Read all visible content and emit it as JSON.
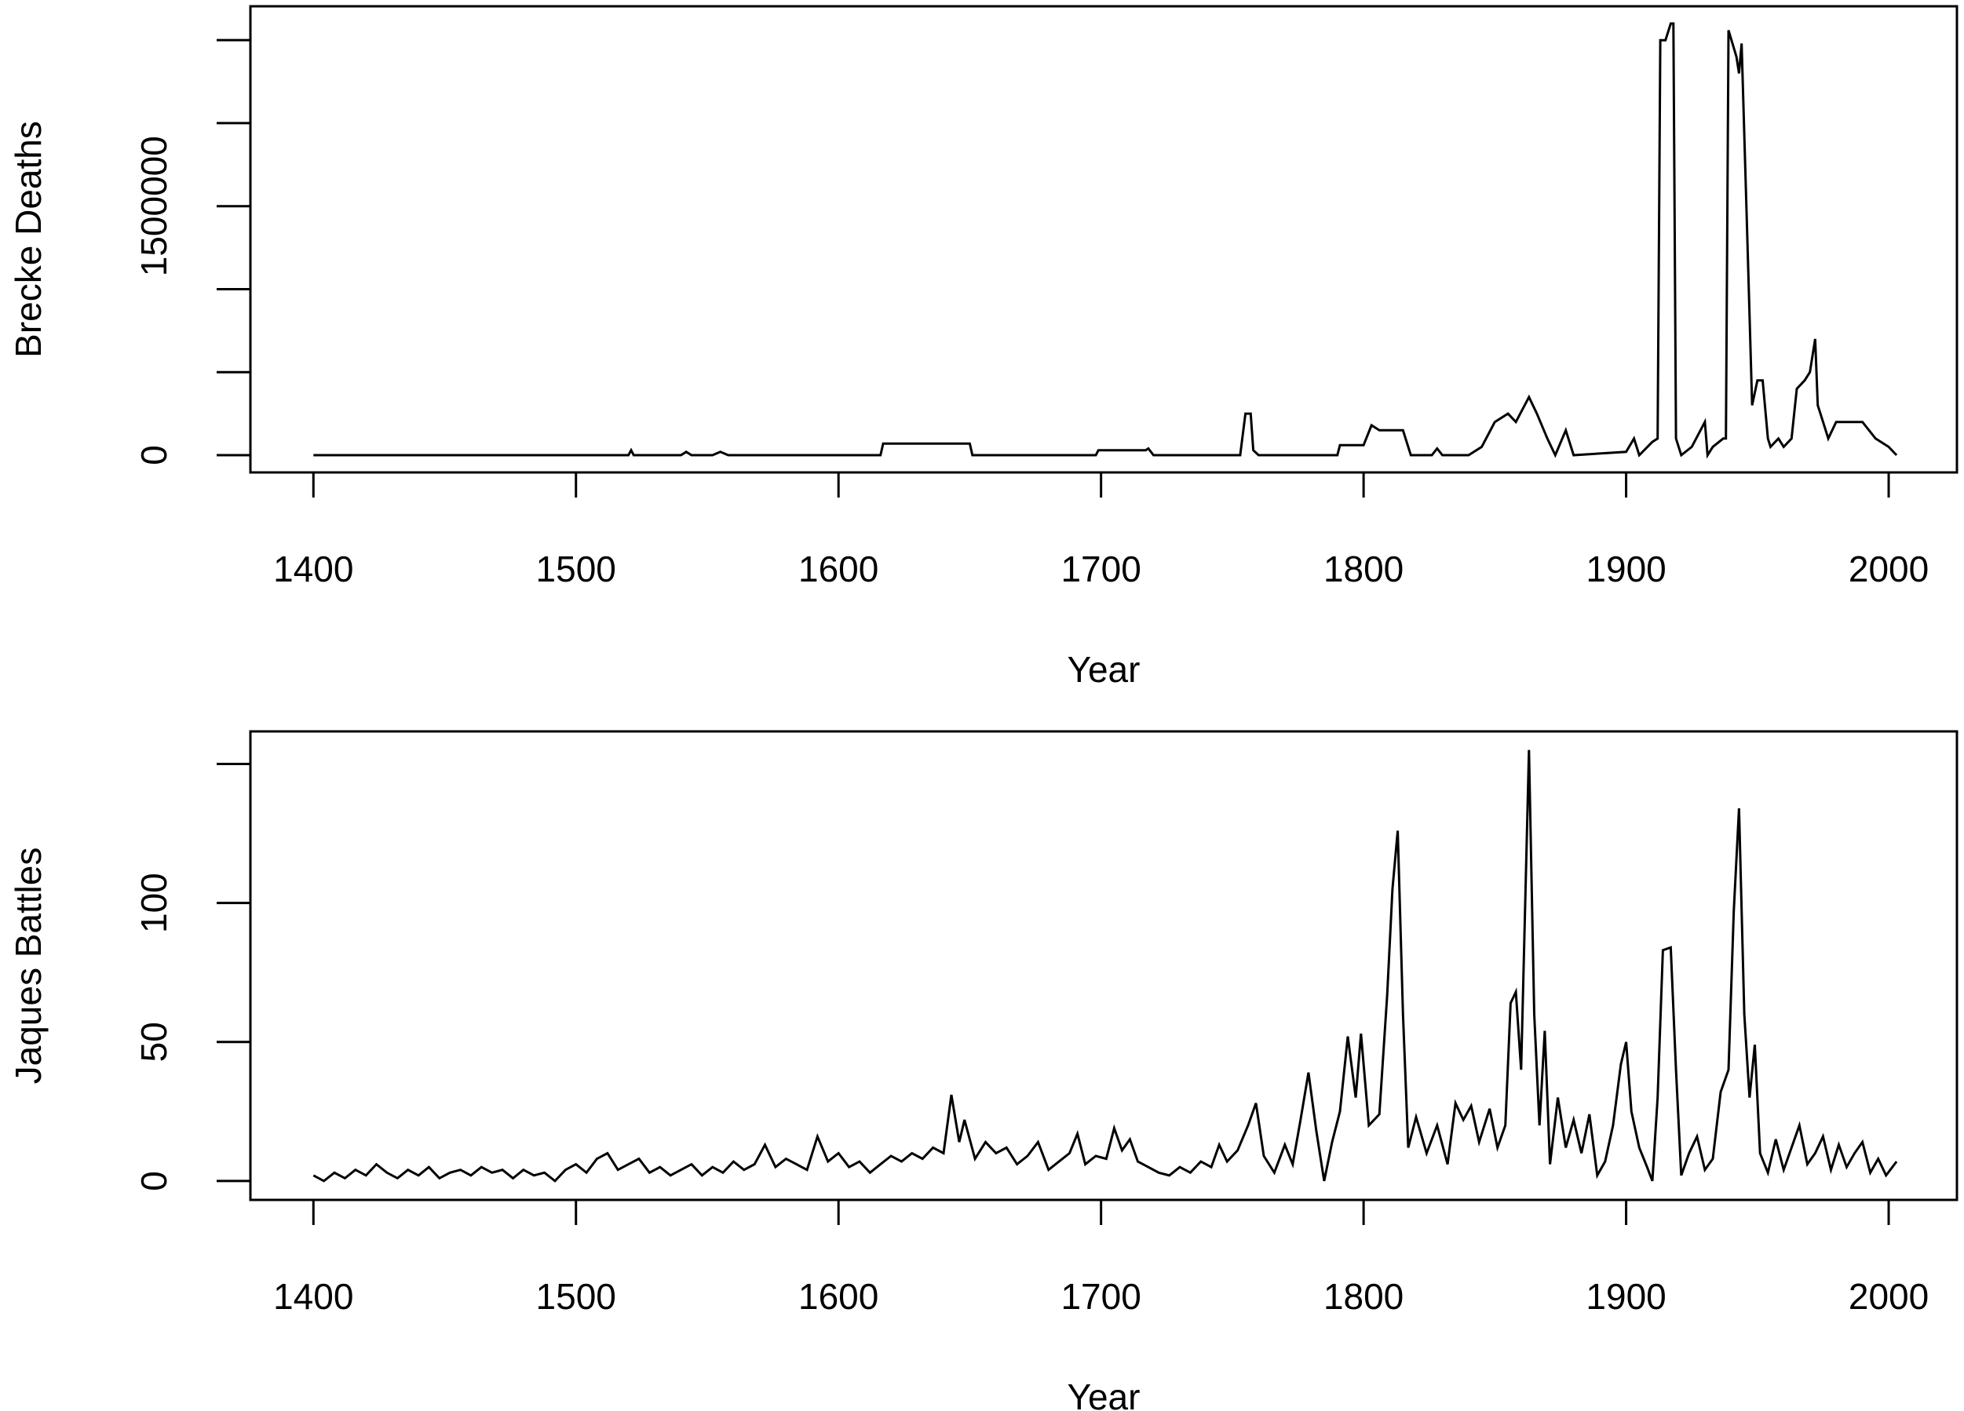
{
  "chart_data": [
    {
      "type": "line",
      "ylabel": "Brecke Deaths",
      "xlabel": "Year",
      "color": "#000000",
      "x": [
        1400,
        1520,
        1521,
        1522,
        1540,
        1542,
        1544,
        1552,
        1555,
        1558,
        1616,
        1617,
        1650,
        1651,
        1698,
        1699,
        1717,
        1718,
        1720,
        1721,
        1753,
        1755,
        1757,
        1758,
        1760,
        1790,
        1791,
        1800,
        1803,
        1806,
        1815,
        1818,
        1826,
        1828,
        1830,
        1840,
        1845,
        1850,
        1855,
        1858,
        1863,
        1866,
        1870,
        1873,
        1877,
        1880,
        1900,
        1903,
        1905,
        1910,
        1912,
        1913,
        1915,
        1917,
        1918,
        1919,
        1921,
        1925,
        1930,
        1931,
        1933,
        1937,
        1938,
        1939,
        1942,
        1943,
        1944,
        1946,
        1948,
        1950,
        1952,
        1954,
        1955,
        1958,
        1960,
        1963,
        1965,
        1968,
        1970,
        1972,
        1973,
        1974,
        1977,
        1980,
        1990,
        1995,
        2000,
        2003
      ],
      "values": [
        0,
        0,
        30000,
        0,
        0,
        20000,
        0,
        0,
        20000,
        0,
        0,
        70000,
        70000,
        0,
        0,
        30000,
        30000,
        40000,
        0,
        0,
        0,
        250000,
        250000,
        30000,
        0,
        0,
        60000,
        60000,
        180000,
        150000,
        150000,
        0,
        0,
        40000,
        0,
        0,
        50000,
        200000,
        250000,
        200000,
        350000,
        250000,
        100000,
        0,
        150000,
        0,
        20000,
        100000,
        0,
        80000,
        100000,
        2500000,
        2500000,
        2600000,
        2600000,
        100000,
        0,
        50000,
        200000,
        0,
        50000,
        100000,
        100000,
        2560000,
        2400000,
        2300000,
        2480000,
        1400000,
        300000,
        450000,
        450000,
        100000,
        50000,
        100000,
        50000,
        100000,
        400000,
        450000,
        500000,
        700000,
        300000,
        250000,
        100000,
        200000,
        200000,
        100000,
        50000,
        0
      ],
      "xlim": [
        1376,
        2026
      ],
      "xticks": [
        1400,
        1500,
        1600,
        1700,
        1800,
        1900,
        2000
      ],
      "ylim": [
        -104000,
        2704000
      ],
      "yticks": [
        0,
        1500000
      ],
      "ytick_marks": [
        0,
        500000,
        1000000,
        1500000,
        2000000,
        2500000
      ]
    },
    {
      "type": "line",
      "ylabel": "Jaques Battles",
      "xlabel": "Year",
      "color": "#000000",
      "x": [
        1400,
        1404,
        1408,
        1412,
        1416,
        1420,
        1424,
        1428,
        1432,
        1436,
        1440,
        1444,
        1448,
        1452,
        1456,
        1460,
        1464,
        1468,
        1472,
        1476,
        1480,
        1484,
        1488,
        1492,
        1496,
        1500,
        1504,
        1508,
        1512,
        1516,
        1520,
        1524,
        1528,
        1532,
        1536,
        1540,
        1544,
        1548,
        1552,
        1556,
        1560,
        1564,
        1568,
        1572,
        1576,
        1580,
        1584,
        1588,
        1592,
        1596,
        1600,
        1604,
        1608,
        1612,
        1616,
        1620,
        1624,
        1628,
        1632,
        1636,
        1640,
        1643,
        1646,
        1648,
        1652,
        1656,
        1660,
        1664,
        1668,
        1672,
        1676,
        1680,
        1684,
        1688,
        1691,
        1694,
        1698,
        1702,
        1705,
        1708,
        1711,
        1714,
        1718,
        1722,
        1726,
        1730,
        1734,
        1738,
        1742,
        1745,
        1748,
        1752,
        1756,
        1759,
        1762,
        1766,
        1770,
        1773,
        1776,
        1779,
        1782,
        1785,
        1788,
        1791,
        1794,
        1797,
        1799,
        1802,
        1806,
        1809,
        1811,
        1813,
        1815,
        1817,
        1820,
        1824,
        1828,
        1832,
        1835,
        1838,
        1841,
        1844,
        1848,
        1851,
        1854,
        1856,
        1858,
        1860,
        1862,
        1863,
        1865,
        1867,
        1869,
        1871,
        1874,
        1877,
        1880,
        1883,
        1886,
        1889,
        1892,
        1895,
        1898,
        1900,
        1902,
        1905,
        1908,
        1910,
        1912,
        1914,
        1917,
        1919,
        1921,
        1924,
        1927,
        1930,
        1933,
        1936,
        1939,
        1941,
        1943,
        1945,
        1947,
        1949,
        1951,
        1954,
        1957,
        1960,
        1963,
        1966,
        1969,
        1972,
        1975,
        1978,
        1981,
        1984,
        1987,
        1990,
        1993,
        1996,
        1999,
        2003
      ],
      "values": [
        2,
        0,
        3,
        1,
        4,
        2,
        6,
        3,
        1,
        4,
        2,
        5,
        1,
        3,
        4,
        2,
        5,
        3,
        4,
        1,
        4,
        2,
        3,
        0,
        4,
        6,
        3,
        8,
        10,
        4,
        6,
        8,
        3,
        5,
        2,
        4,
        6,
        2,
        5,
        3,
        7,
        4,
        6,
        13,
        5,
        8,
        6,
        4,
        16,
        7,
        10,
        5,
        7,
        3,
        6,
        9,
        7,
        10,
        8,
        12,
        10,
        31,
        14,
        22,
        8,
        14,
        10,
        12,
        6,
        9,
        14,
        4,
        7,
        10,
        17,
        6,
        9,
        8,
        19,
        11,
        15,
        7,
        5,
        3,
        2,
        5,
        3,
        7,
        5,
        13,
        7,
        11,
        20,
        28,
        9,
        3,
        13,
        6,
        22,
        39,
        18,
        0,
        14,
        25,
        52,
        30,
        53,
        20,
        24,
        67,
        105,
        126,
        60,
        12,
        23,
        10,
        20,
        6,
        28,
        22,
        27,
        14,
        26,
        12,
        20,
        64,
        68,
        40,
        117,
        155,
        60,
        20,
        54,
        6,
        30,
        12,
        22,
        10,
        24,
        2,
        7,
        20,
        42,
        50,
        25,
        12,
        5,
        0,
        30,
        83,
        84,
        40,
        2,
        10,
        16,
        4,
        8,
        32,
        40,
        97,
        134,
        60,
        30,
        49,
        10,
        3,
        15,
        4,
        12,
        20,
        6,
        10,
        16,
        4,
        13,
        5,
        10,
        14,
        3,
        8,
        2,
        7
      ],
      "xlim": [
        1376,
        2026
      ],
      "xticks": [
        1400,
        1500,
        1600,
        1700,
        1800,
        1900,
        2000
      ],
      "ylim": [
        -6.8,
        161.7
      ],
      "yticks": [
        0,
        50,
        100
      ],
      "ytick_marks": [
        0,
        50,
        100,
        150
      ]
    }
  ]
}
